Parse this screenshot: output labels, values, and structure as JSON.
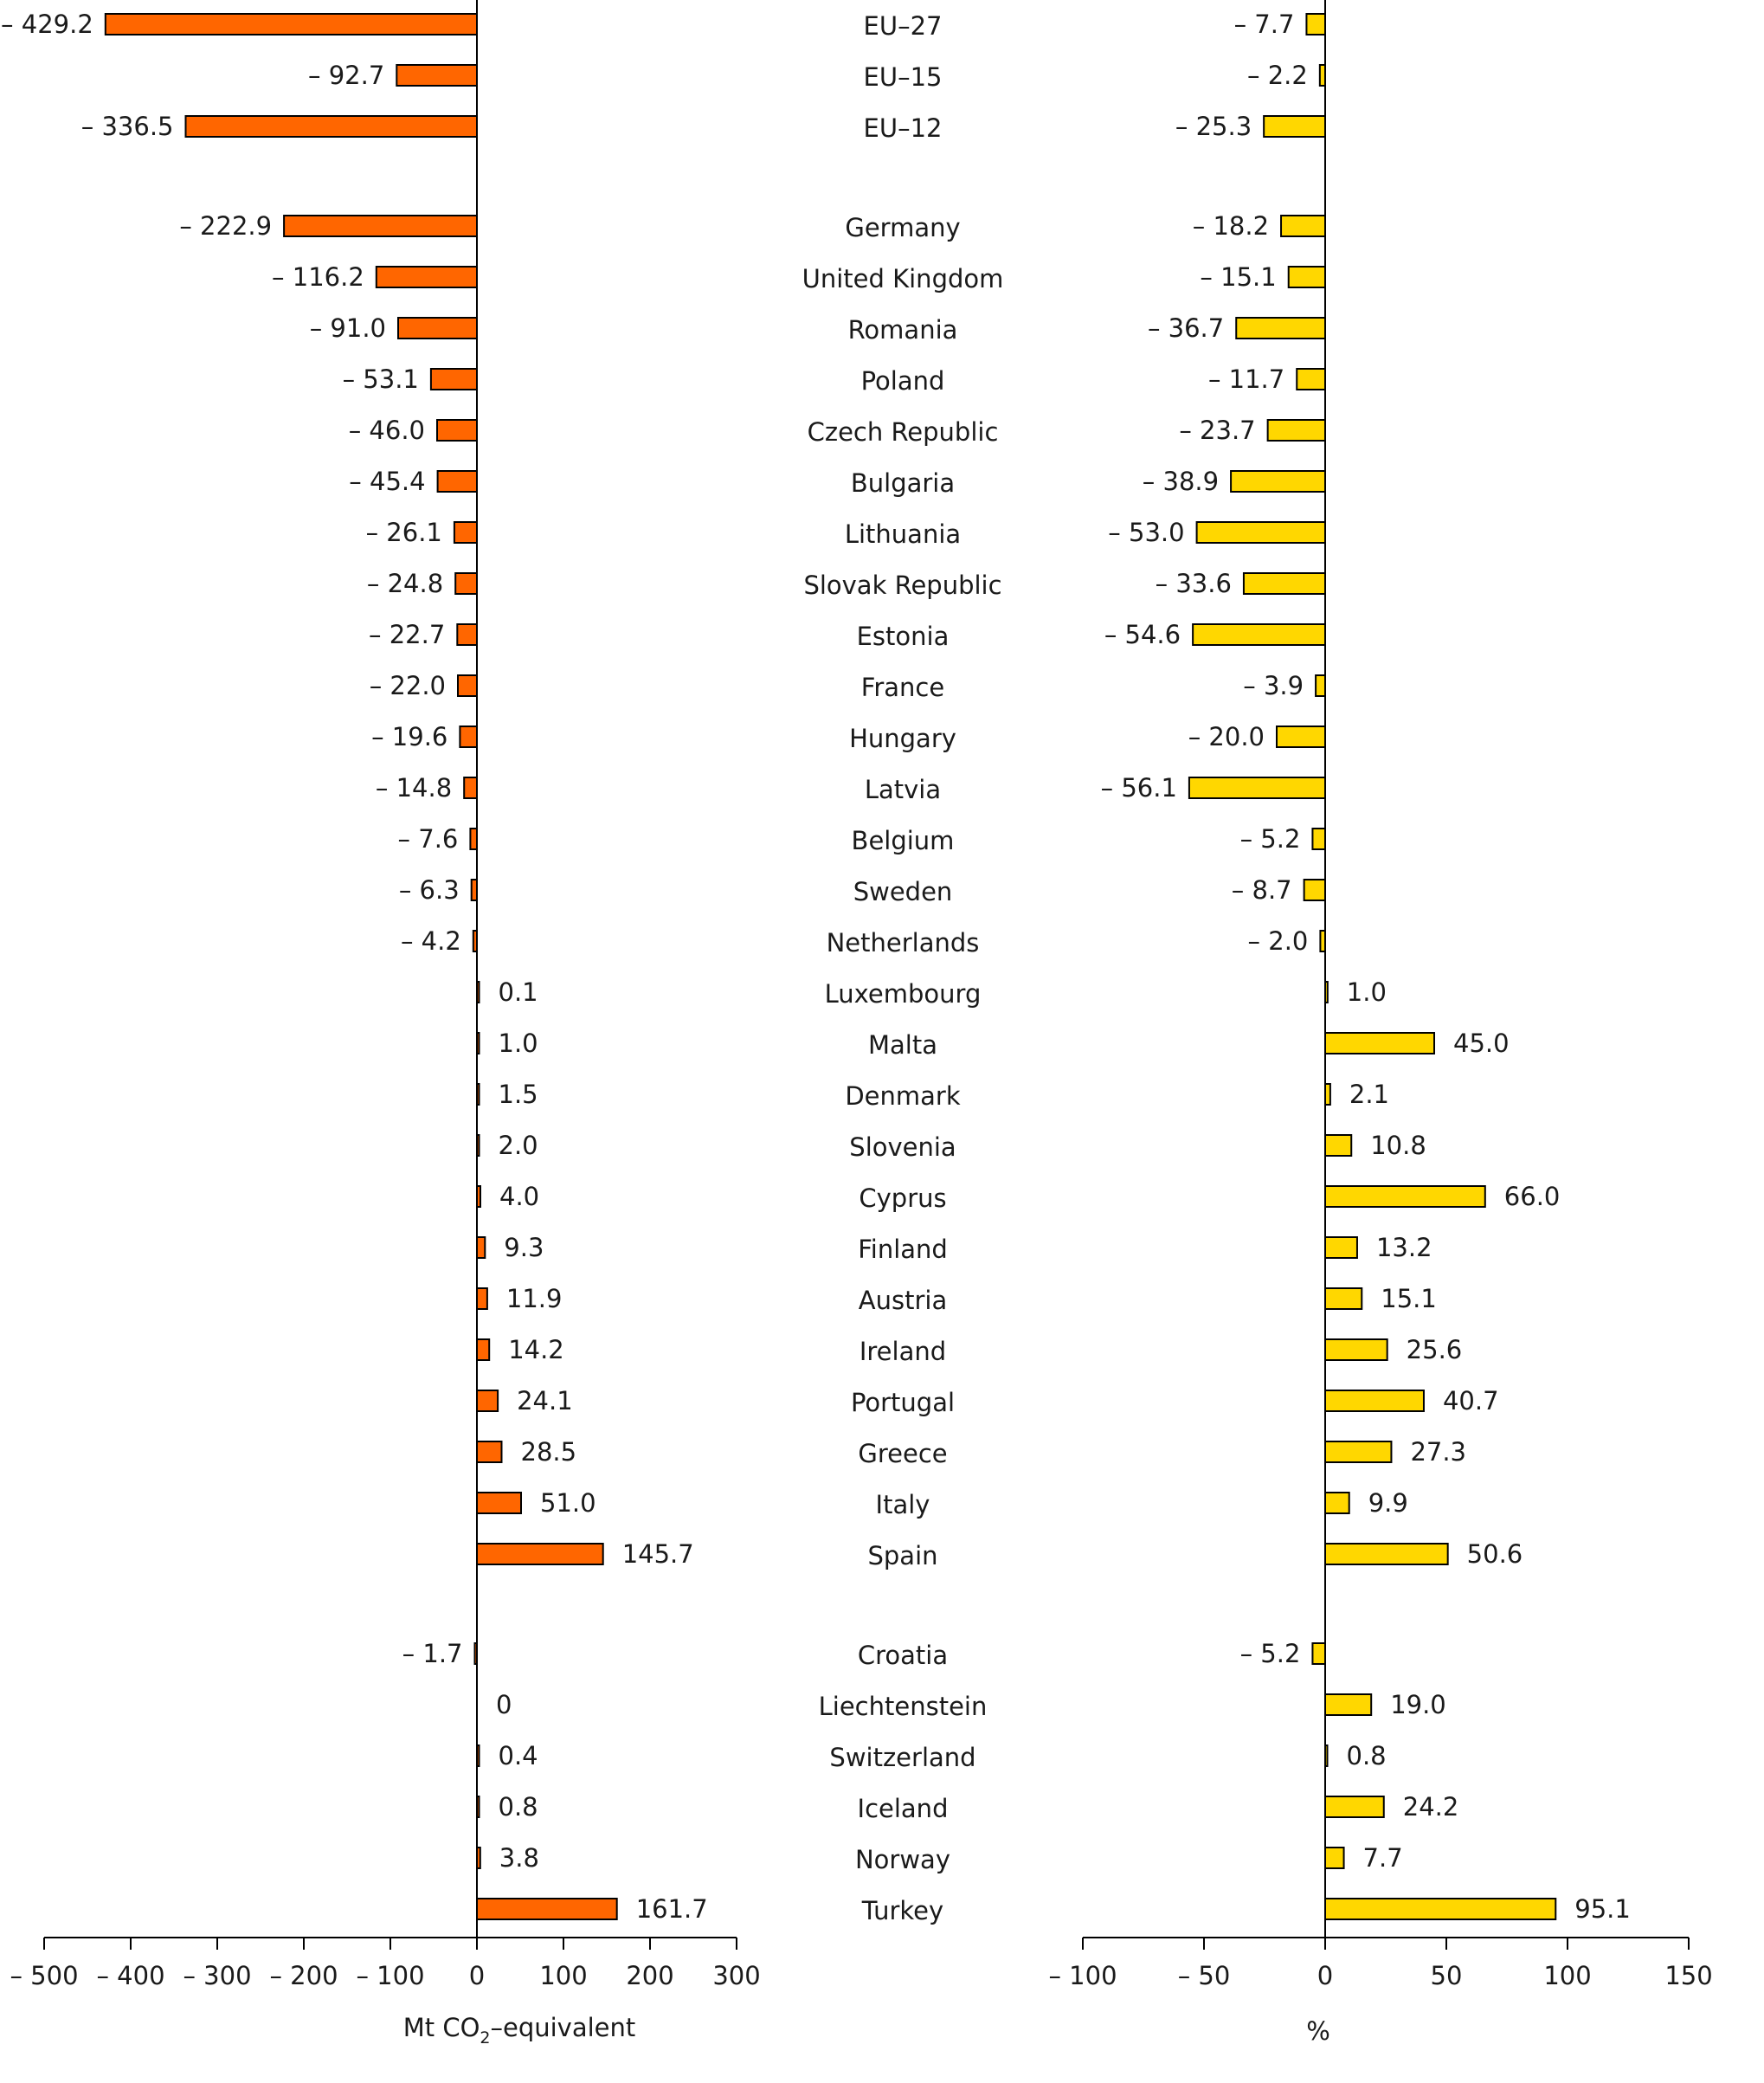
{
  "chart_data": [
    {
      "type": "bar",
      "orientation": "horizontal",
      "categories": [
        "EU–27",
        "EU–15",
        "EU–12",
        "Germany",
        "United Kingdom",
        "Romania",
        "Poland",
        "Czech Republic",
        "Bulgaria",
        "Lithuania",
        "Slovak Republic",
        "Estonia",
        "France",
        "Hungary",
        "Latvia",
        "Belgium",
        "Sweden",
        "Netherlands",
        "Luxembourg",
        "Malta",
        "Denmark",
        "Slovenia",
        "Cyprus",
        "Finland",
        "Austria",
        "Ireland",
        "Portugal",
        "Greece",
        "Italy",
        "Spain",
        "Croatia",
        "Liechtenstein",
        "Switzerland",
        "Iceland",
        "Norway",
        "Turkey"
      ],
      "values": [
        -429.2,
        -92.7,
        -336.5,
        -222.9,
        -116.2,
        -91.0,
        -53.1,
        -46.0,
        -45.4,
        -26.1,
        -24.8,
        -22.7,
        -22.0,
        -19.6,
        -14.8,
        -7.6,
        -6.3,
        -4.2,
        0.1,
        1.0,
        1.5,
        2.0,
        4.0,
        9.3,
        11.9,
        14.2,
        24.1,
        28.5,
        51.0,
        145.7,
        -1.7,
        0,
        0.4,
        0.8,
        3.8,
        161.7
      ],
      "value_labels": [
        "– 429.2",
        "– 92.7",
        "– 336.5",
        "– 222.9",
        "– 116.2",
        "– 91.0",
        "– 53.1",
        "– 46.0",
        "– 45.4",
        "– 26.1",
        "– 24.8",
        "– 22.7",
        "– 22.0",
        "– 19.6",
        "– 14.8",
        "– 7.6",
        "– 6.3",
        "– 4.2",
        "0.1",
        "1.0",
        "1.5",
        "2.0",
        "4.0",
        "9.3",
        "11.9",
        "14.2",
        "24.1",
        "28.5",
        "51.0",
        "145.7",
        "– 1.7",
        "0",
        "0.4",
        "0.8",
        "3.8",
        "161.7"
      ],
      "xlabel": "Mt CO₂–equivalent",
      "xlabel_parts": [
        "Mt CO",
        "2",
        "–equivalent"
      ],
      "xlim": [
        -500,
        300
      ],
      "ticks": [
        -500,
        -400,
        -300,
        -200,
        -100,
        0,
        100,
        200,
        300
      ],
      "tick_labels": [
        "– 500",
        "– 400",
        "– 300",
        "– 200",
        "– 100",
        "0",
        "100",
        "200",
        "300"
      ],
      "color": "#ff6600"
    },
    {
      "type": "bar",
      "orientation": "horizontal",
      "categories": [
        "EU–27",
        "EU–15",
        "EU–12",
        "Germany",
        "United Kingdom",
        "Romania",
        "Poland",
        "Czech Republic",
        "Bulgaria",
        "Lithuania",
        "Slovak Republic",
        "Estonia",
        "France",
        "Hungary",
        "Latvia",
        "Belgium",
        "Sweden",
        "Netherlands",
        "Luxembourg",
        "Malta",
        "Denmark",
        "Slovenia",
        "Cyprus",
        "Finland",
        "Austria",
        "Ireland",
        "Portugal",
        "Greece",
        "Italy",
        "Spain",
        "Croatia",
        "Liechtenstein",
        "Switzerland",
        "Iceland",
        "Norway",
        "Turkey"
      ],
      "values": [
        -7.7,
        -2.2,
        -25.3,
        -18.2,
        -15.1,
        -36.7,
        -11.7,
        -23.7,
        -38.9,
        -53.0,
        -33.6,
        -54.6,
        -3.9,
        -20.0,
        -56.1,
        -5.2,
        -8.7,
        -2.0,
        1.0,
        45.0,
        2.1,
        10.8,
        66.0,
        13.2,
        15.1,
        25.6,
        40.7,
        27.3,
        9.9,
        50.6,
        -5.2,
        19.0,
        0.8,
        24.2,
        7.7,
        95.1
      ],
      "value_labels": [
        "– 7.7",
        "– 2.2",
        "– 25.3",
        "– 18.2",
        "– 15.1",
        "– 36.7",
        "– 11.7",
        "– 23.7",
        "– 38.9",
        "– 53.0",
        "– 33.6",
        "– 54.6",
        "– 3.9",
        "– 20.0",
        "– 56.1",
        "– 5.2",
        "– 8.7",
        "– 2.0",
        "1.0",
        "45.0",
        "2.1",
        "10.8",
        "66.0",
        "13.2",
        "15.1",
        "25.6",
        "40.7",
        "27.3",
        "9.9",
        "50.6",
        "– 5.2",
        "19.0",
        "0.8",
        "24.2",
        "7.7",
        "95.1"
      ],
      "xlabel": "%",
      "xlim": [
        -100,
        150
      ],
      "ticks": [
        -100,
        -50,
        0,
        50,
        100,
        150
      ],
      "tick_labels": [
        "– 100",
        "– 50",
        "0",
        "50",
        "100",
        "150"
      ],
      "color": "#ffd700"
    }
  ]
}
